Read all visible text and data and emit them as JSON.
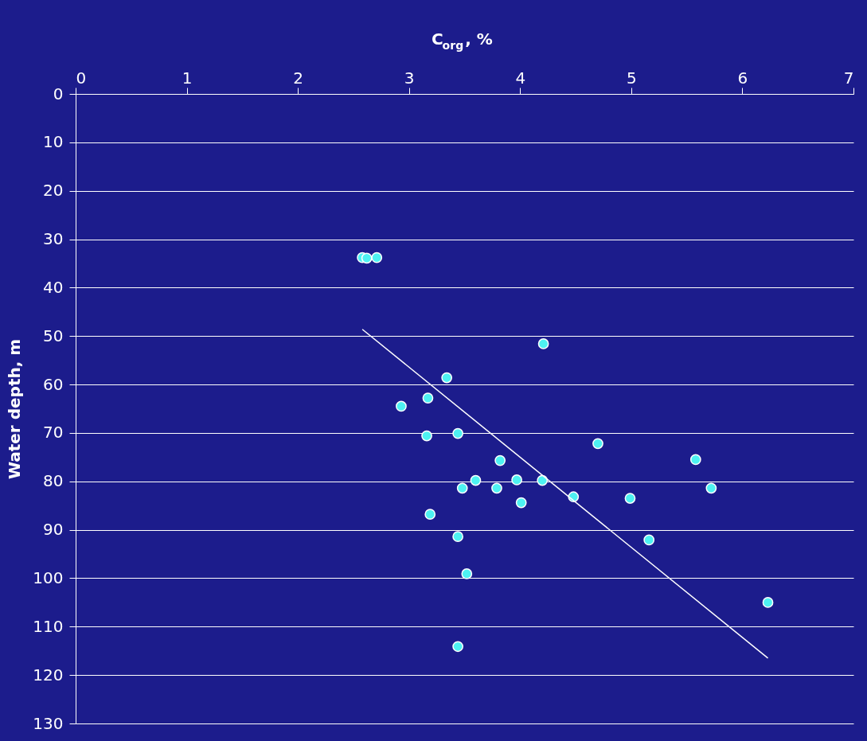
{
  "chart_data": {
    "type": "scatter",
    "xlabel": "C$_{org}$, %",
    "ylabel": "Water depth, m",
    "xlim": [
      0,
      7
    ],
    "xticks": [
      0,
      1,
      2,
      3,
      4,
      5,
      6,
      7
    ],
    "ylim": [
      130,
      0
    ],
    "yticks": [
      0,
      10,
      20,
      30,
      40,
      50,
      60,
      70,
      80,
      90,
      100,
      110,
      120,
      130
    ],
    "grid": "y",
    "series": [
      {
        "type": "scatter",
        "marker": "circle",
        "color": "#4ef2f2",
        "x": [
          2.58,
          2.62,
          2.71,
          4.21,
          3.34,
          3.17,
          2.93,
          3.16,
          3.44,
          4.7,
          3.82,
          5.58,
          3.6,
          3.97,
          4.2,
          3.48,
          3.79,
          5.72,
          4.48,
          4.99,
          4.01,
          3.19,
          3.44,
          5.16,
          3.52,
          6.23,
          3.44
        ],
        "values": [
          33.8,
          33.9,
          33.8,
          51.6,
          58.6,
          62.8,
          64.5,
          70.6,
          70.1,
          72.2,
          75.7,
          75.5,
          79.8,
          79.7,
          79.8,
          81.4,
          81.4,
          81.4,
          83.2,
          83.5,
          84.4,
          86.8,
          91.4,
          92.1,
          99.1,
          105,
          114.1
        ]
      },
      {
        "type": "line",
        "color": "#ffffff",
        "marker": "none",
        "line_style": "solid",
        "x": [
          2.58,
          6.23
        ],
        "values": [
          48.6,
          116.5
        ]
      }
    ]
  }
}
